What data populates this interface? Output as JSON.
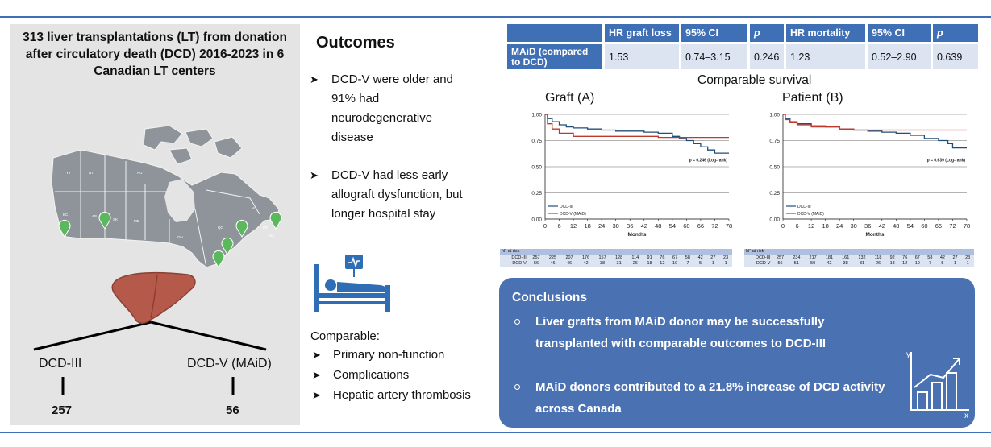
{
  "left": {
    "title": "313 liver transplantations (LT) from donation after circulatory death (DCD) 2016-2023 in 6 Canadian LT centers",
    "groups": [
      {
        "label": "DCD-III",
        "count": "257"
      },
      {
        "label": "DCD-V (MAiD)",
        "count": "56"
      }
    ],
    "map_labels": [
      "YT",
      "NT",
      "NU",
      "BC",
      "AB",
      "SK",
      "MB",
      "ON",
      "QC",
      "NL",
      "PE",
      "NS"
    ]
  },
  "outcomes": {
    "title": "Outcomes",
    "bullets": [
      "DCD-V were older and 91% had neurodegenerative disease",
      "DCD-V had less early allograft dysfunction, but longer hospital stay"
    ],
    "comparable_title": "Comparable:",
    "comparable_items": [
      "Primary non-function",
      "Complications",
      "Hepatic artery thrombosis"
    ]
  },
  "hr_table": {
    "headers": [
      "",
      "HR graft loss",
      "95% CI",
      "p",
      "HR mortality",
      "95% CI",
      "p"
    ],
    "row": [
      "MAiD (compared to DCD)",
      "1.53",
      "0.74–3.15",
      "0.246",
      "1.23",
      "0.52–2.90",
      "0.639"
    ]
  },
  "survival": {
    "title": "Comparable survival",
    "graft_title": "Graft (A)",
    "patient_title": "Patient (B)"
  },
  "chart_data": [
    {
      "type": "line",
      "title": "Graft (A)",
      "xlabel": "Months",
      "ylabel": "",
      "xlim": [
        0,
        78
      ],
      "ylim": [
        0,
        1
      ],
      "xticks": [
        0,
        6,
        12,
        18,
        24,
        30,
        36,
        42,
        48,
        54,
        60,
        66,
        72,
        78
      ],
      "yticks": [
        "0.00",
        "0.25",
        "0.50",
        "0.75",
        "1.00"
      ],
      "annotation": "p = 0.246 (Log-rank)",
      "legend_position": "bottom-left",
      "series": [
        {
          "name": "DCD-III",
          "color": "#1f4e79",
          "x": [
            0,
            1,
            3,
            6,
            9,
            12,
            18,
            24,
            30,
            36,
            42,
            48,
            54,
            57,
            60,
            63,
            66,
            69,
            72,
            78
          ],
          "y": [
            1.0,
            0.96,
            0.93,
            0.9,
            0.88,
            0.87,
            0.86,
            0.85,
            0.84,
            0.84,
            0.83,
            0.82,
            0.79,
            0.77,
            0.75,
            0.72,
            0.69,
            0.66,
            0.63,
            0.63
          ]
        },
        {
          "name": "DCD-V (MAiD)",
          "color": "#c0392b",
          "x": [
            0,
            1,
            3,
            6,
            12,
            24,
            36,
            48,
            60,
            78
          ],
          "y": [
            1.0,
            0.91,
            0.86,
            0.82,
            0.79,
            0.79,
            0.79,
            0.78,
            0.78,
            0.78
          ]
        }
      ],
      "risk_table": {
        "header": "N° at risk",
        "rows": [
          {
            "name": "DCD-III",
            "values": [
              "257",
              "225",
              "207",
              "176",
              "157",
              "128",
              "114",
              "91",
              "76",
              "67",
              "58",
              "42",
              "27",
              "23"
            ]
          },
          {
            "name": "DCD-V",
            "values": [
              "56",
              "46",
              "46",
              "42",
              "38",
              "31",
              "26",
              "18",
              "12",
              "10",
              "7",
              "5",
              "1",
              "1"
            ]
          }
        ]
      }
    },
    {
      "type": "line",
      "title": "Patient (B)",
      "xlabel": "Months",
      "ylabel": "",
      "xlim": [
        0,
        78
      ],
      "ylim": [
        0,
        1
      ],
      "xticks": [
        0,
        6,
        12,
        18,
        24,
        30,
        36,
        42,
        48,
        54,
        60,
        66,
        72,
        78
      ],
      "yticks": [
        "0.00",
        "0.25",
        "0.50",
        "0.75",
        "1.00"
      ],
      "annotation": "p = 0.639 (Log-rank)",
      "legend_position": "bottom-left",
      "series": [
        {
          "name": "DCD-III",
          "color": "#1f4e79",
          "x": [
            0,
            1,
            3,
            6,
            12,
            18,
            24,
            30,
            36,
            42,
            48,
            54,
            60,
            66,
            70,
            72,
            78
          ],
          "y": [
            1.0,
            0.96,
            0.93,
            0.91,
            0.89,
            0.88,
            0.86,
            0.85,
            0.84,
            0.83,
            0.82,
            0.8,
            0.77,
            0.75,
            0.72,
            0.68,
            0.68
          ]
        },
        {
          "name": "DCD-V (MAiD)",
          "color": "#c0392b",
          "x": [
            0,
            1,
            3,
            6,
            12,
            24,
            30,
            36,
            48,
            60,
            78
          ],
          "y": [
            1.0,
            0.95,
            0.92,
            0.9,
            0.88,
            0.86,
            0.85,
            0.85,
            0.85,
            0.85,
            0.85
          ]
        }
      ],
      "risk_table": {
        "header": "N° at risk",
        "rows": [
          {
            "name": "DCD-III",
            "values": [
              "257",
              "234",
              "217",
              "181",
              "161",
              "132",
              "118",
              "92",
              "76",
              "67",
              "58",
              "42",
              "27",
              "23"
            ]
          },
          {
            "name": "DCD-V",
            "values": [
              "56",
              "51",
              "50",
              "42",
              "38",
              "31",
              "26",
              "18",
              "12",
              "10",
              "7",
              "5",
              "1",
              "1"
            ]
          }
        ]
      }
    }
  ],
  "conclusions": {
    "title": "Conclusions",
    "items": [
      "Liver grafts from MAiD donor may be successfully transplanted with comparable outcomes to DCD-III",
      "MAiD donors contributed to a 21.8% increase of DCD activity across Canada"
    ]
  },
  "colors": {
    "accent_blue": "#3f6fb5",
    "table_row": "#dce3f1",
    "conclusion_bg": "#4a72b2",
    "dcd3_line": "#1f4e79",
    "dcdv_line": "#c0392b",
    "map_green": "#5cb85c",
    "liver": "#b5594a"
  },
  "icons": [
    "map-marker-icon",
    "liver-icon",
    "hospital-bed-icon",
    "growth-chart-icon"
  ]
}
